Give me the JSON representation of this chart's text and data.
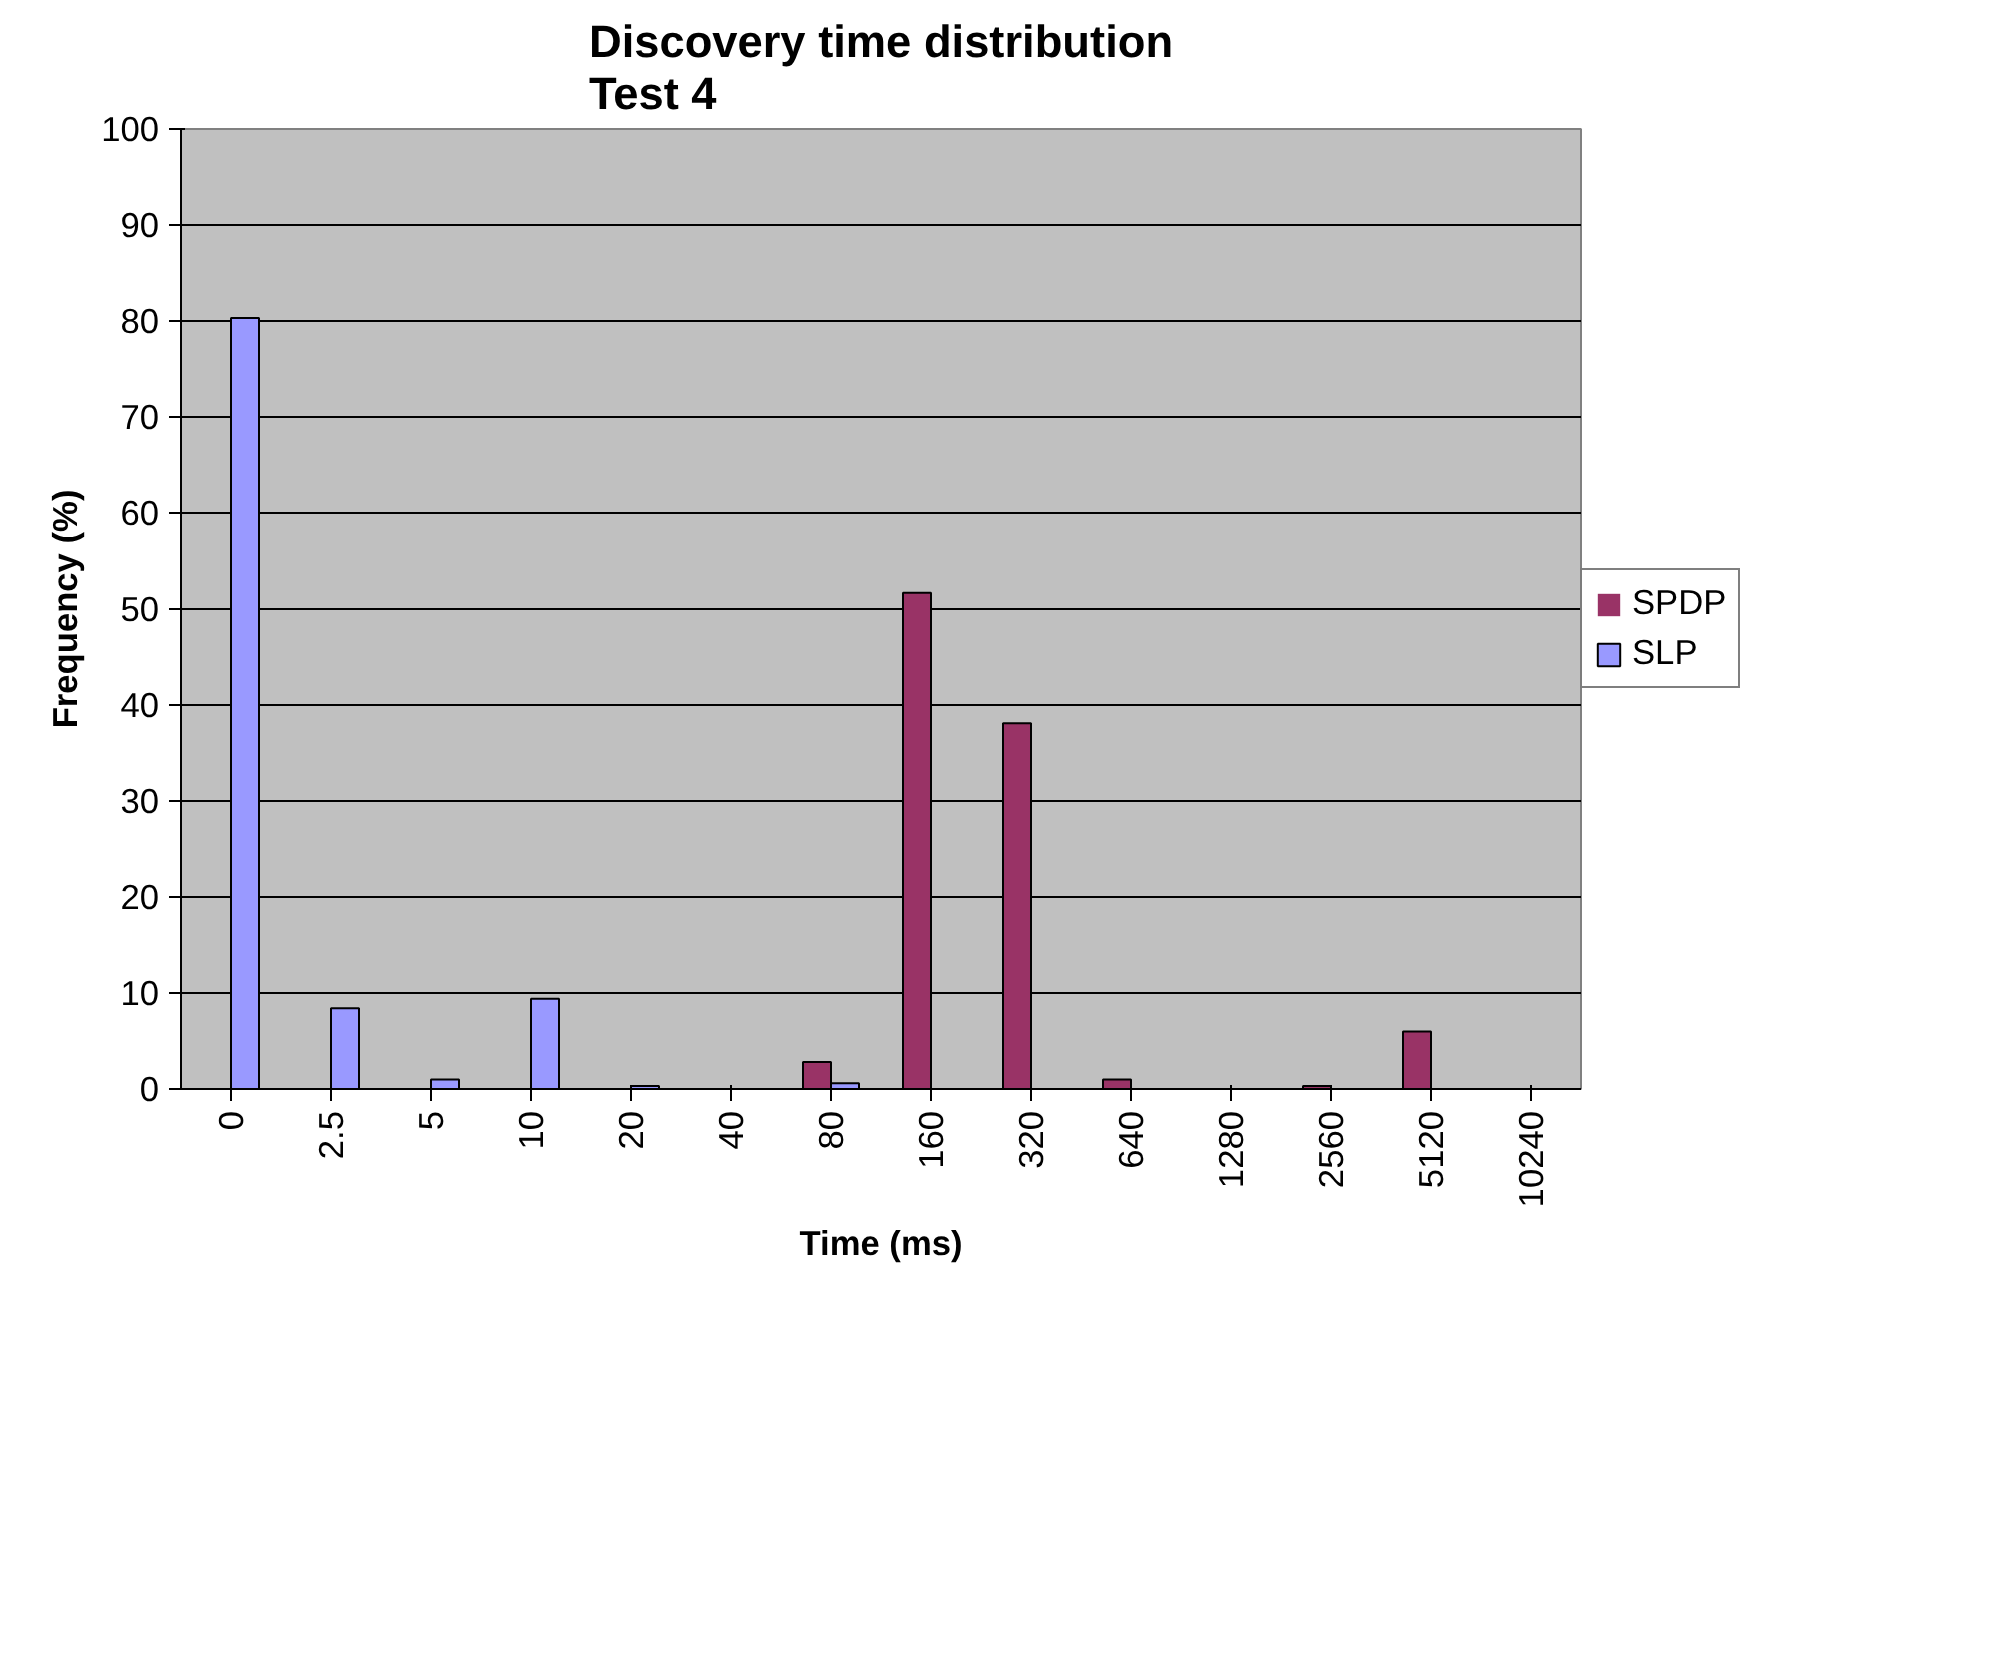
{
  "chart_data": {
    "type": "bar",
    "title": "Discovery time distribution\nTest 4",
    "xlabel": "Time (ms)",
    "ylabel": "Frequency (%)",
    "categories": [
      "0",
      "2.5",
      "5",
      "10",
      "20",
      "40",
      "80",
      "160",
      "320",
      "640",
      "1280",
      "2560",
      "5120",
      "10240"
    ],
    "series": [
      {
        "name": "SPDP",
        "color": "#993366",
        "values": [
          0,
          0,
          0,
          0,
          0,
          0,
          2.8,
          51.7,
          38.1,
          1.0,
          0,
          0.3,
          6.0,
          0
        ]
      },
      {
        "name": "SLP",
        "color": "#9999ff",
        "values": [
          80.3,
          8.4,
          1.0,
          9.4,
          0.3,
          0,
          0.6,
          0,
          0,
          0,
          0,
          0,
          0,
          0
        ]
      }
    ],
    "ylim": [
      0,
      100
    ],
    "yticks": [
      0,
      10,
      20,
      30,
      40,
      50,
      60,
      70,
      80,
      90,
      100
    ],
    "grid": "y",
    "legend": "right"
  }
}
